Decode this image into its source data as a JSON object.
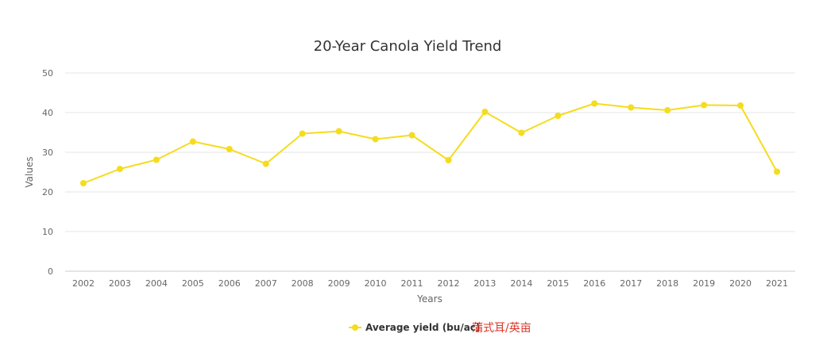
{
  "chart_data": {
    "type": "line",
    "title": "20-Year Canola Yield Trend",
    "xlabel": "Years",
    "ylabel": "Values",
    "ylim": [
      0,
      50
    ],
    "yticks": [
      "0",
      "10",
      "20",
      "30",
      "40",
      "50"
    ],
    "categories": [
      "2002",
      "2003",
      "2004",
      "2005",
      "2006",
      "2007",
      "2008",
      "2009",
      "2010",
      "2011",
      "2012",
      "2013",
      "2014",
      "2015",
      "2016",
      "2017",
      "2018",
      "2019",
      "2020",
      "2021"
    ],
    "series": [
      {
        "name": "Average yield (bu/ac)",
        "color": "#f5dc1d",
        "values": [
          22.2,
          25.8,
          28.1,
          32.7,
          30.8,
          27.1,
          34.7,
          35.3,
          33.3,
          34.3,
          28.0,
          40.2,
          34.9,
          39.2,
          42.3,
          41.3,
          40.6,
          41.9,
          41.8,
          25.1
        ]
      }
    ],
    "grid": true,
    "legend": "bottom-center",
    "legend_note": "蒲式耳/英亩",
    "legend_note_color": "#d9362b"
  }
}
